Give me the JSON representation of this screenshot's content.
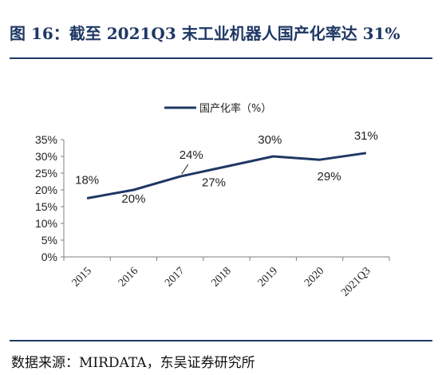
{
  "header": {
    "title": "图 16：截至 2021Q3 末工业机器人国产化率达 31%"
  },
  "footer": {
    "source": "数据来源：MIRDATA，东吴证券研究所"
  },
  "chart_data": {
    "type": "line",
    "x": [
      "2015",
      "2016",
      "2017",
      "2018",
      "2019",
      "2020",
      "2021Q3"
    ],
    "series": [
      {
        "name": "国产化率（%）",
        "values": [
          17.5,
          20,
          24,
          27,
          30,
          29,
          31
        ]
      }
    ],
    "data_labels": [
      "18%",
      "20%",
      "24%",
      "27%",
      "30%",
      "29%",
      "31%"
    ],
    "yticks": [
      "0%",
      "5%",
      "10%",
      "15%",
      "20%",
      "25%",
      "30%",
      "35%"
    ],
    "ylim": [
      0,
      35
    ],
    "grid": false,
    "legend_position": "top-center",
    "colors": {
      "line": "#1f3864",
      "rule": "#1f3864"
    }
  }
}
